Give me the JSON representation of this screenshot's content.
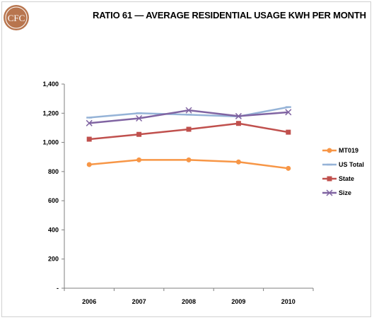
{
  "header": {
    "logo_text": "CFC",
    "title": "RATIO 61 — AVERAGE RESIDENTIAL USAGE KWH PER MONTH"
  },
  "colors": {
    "logo": "#b8754e",
    "MT019": "#f79646",
    "US Total": "#95b3d7",
    "State": "#c0504d",
    "Size": "#8064a2",
    "axis": "#7f7f7f"
  },
  "chart_data": {
    "type": "line",
    "title": "RATIO 61 — AVERAGE RESIDENTIAL USAGE KWH PER MONTH",
    "categories": [
      "2006",
      "2007",
      "2008",
      "2009",
      "2010"
    ],
    "ylim": [
      0,
      1400
    ],
    "yticks": [
      0,
      200,
      400,
      600,
      800,
      1000,
      1200,
      1400
    ],
    "ytick_labels": [
      "-",
      "200",
      "400",
      "600",
      "800",
      "1,000",
      "1,200",
      "1,400"
    ],
    "grid": false,
    "legend_position": "right",
    "series": [
      {
        "name": "MT019",
        "marker": "circle",
        "values": [
          848,
          880,
          880,
          866,
          822
        ]
      },
      {
        "name": "US Total",
        "marker": "line",
        "values": [
          1170,
          1200,
          1190,
          1178,
          1242
        ]
      },
      {
        "name": "State",
        "marker": "square",
        "values": [
          1022,
          1055,
          1090,
          1130,
          1070
        ]
      },
      {
        "name": "Size",
        "marker": "x",
        "values": [
          1132,
          1165,
          1220,
          1180,
          1207
        ]
      }
    ]
  }
}
